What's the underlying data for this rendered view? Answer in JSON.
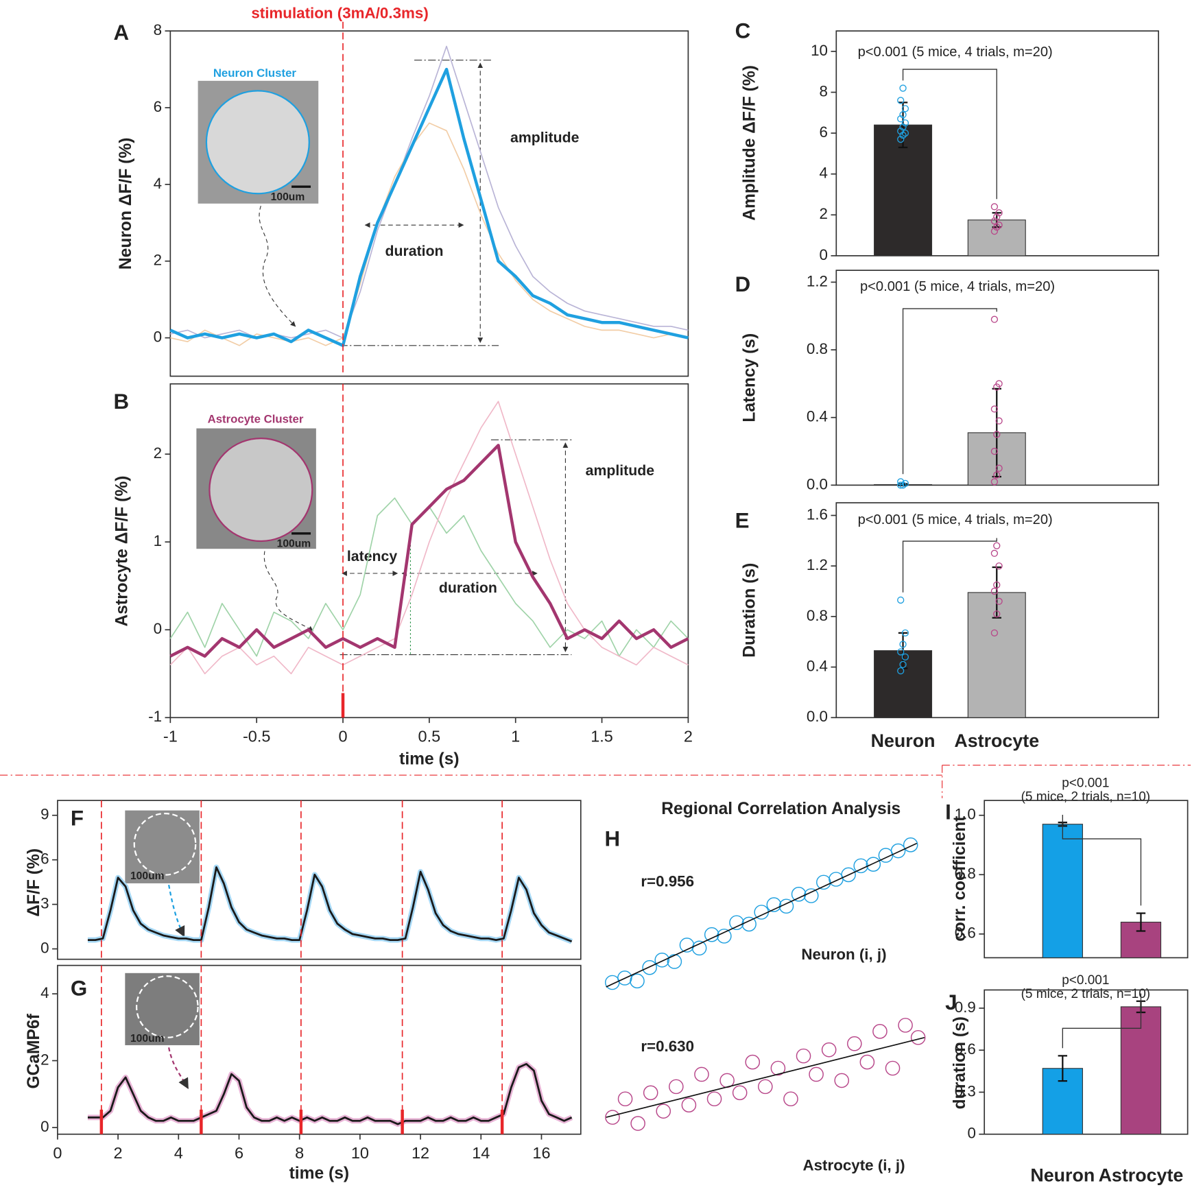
{
  "chart_data": [
    {
      "type": "line",
      "panel": "A",
      "stim_label": "stimulation (3mA/0.3ms)",
      "inset_title": "Neuron Cluster",
      "scale_bar": "100um",
      "annotations": [
        "amplitude",
        "duration"
      ],
      "y_label": "Neuron ΔF/F (%)",
      "xlim": [
        -1,
        2
      ],
      "ylim": [
        -1,
        8
      ],
      "yticks": [
        0,
        2,
        4,
        6,
        8
      ],
      "stim_times": [
        0
      ],
      "stim_color": "#e8262a",
      "x": [
        -1,
        -0.9,
        -0.8,
        -0.7,
        -0.6,
        -0.5,
        -0.4,
        -0.3,
        -0.2,
        -0.1,
        0,
        0.1,
        0.2,
        0.3,
        0.4,
        0.5,
        0.6,
        0.7,
        0.8,
        0.9,
        1,
        1.1,
        1.2,
        1.3,
        1.4,
        1.5,
        1.6,
        1.7,
        1.8,
        1.9,
        2
      ],
      "series": [
        {
          "color": "#b9b4d6",
          "linewidth": 1.5,
          "values": [
            0.1,
            0.2,
            0.0,
            0.1,
            0.2,
            0.0,
            0.1,
            0.0,
            0.1,
            0.2,
            0.0,
            1.2,
            2.8,
            4.0,
            5.2,
            6.3,
            7.6,
            6.2,
            4.8,
            3.4,
            2.4,
            1.6,
            1.2,
            0.9,
            0.7,
            0.6,
            0.5,
            0.4,
            0.3,
            0.3,
            0.2
          ]
        },
        {
          "color": "#f2cda6",
          "linewidth": 1.5,
          "values": [
            0.0,
            -0.1,
            0.2,
            0.0,
            -0.2,
            0.1,
            0.0,
            -0.1,
            0.0,
            -0.2,
            0.0,
            1.4,
            3.0,
            4.2,
            5.0,
            5.6,
            5.4,
            4.4,
            3.2,
            2.2,
            1.5,
            1.0,
            0.7,
            0.5,
            0.3,
            0.2,
            0.2,
            0.1,
            0.0,
            0.1,
            0.0
          ]
        },
        {
          "color": "#1fa0e0",
          "linewidth": 4,
          "values": [
            0.2,
            0.0,
            0.1,
            0.0,
            0.1,
            0.0,
            0.1,
            -0.1,
            0.2,
            0.0,
            -0.2,
            1.6,
            3.0,
            4.0,
            5.0,
            6.0,
            7.0,
            5.2,
            3.6,
            2.0,
            1.6,
            1.1,
            0.9,
            0.6,
            0.5,
            0.4,
            0.4,
            0.3,
            0.2,
            0.1,
            0.0
          ]
        }
      ]
    },
    {
      "type": "line",
      "panel": "B",
      "inset_title": "Astrocyte Cluster",
      "scale_bar": "100um",
      "annotations": [
        "amplitude",
        "latency",
        "duration"
      ],
      "y_label": "Astrocyte ΔF/F (%)",
      "x_label": "time (s)",
      "xlim": [
        -1,
        2
      ],
      "ylim": [
        -1,
        2.8
      ],
      "yticks": [
        -1,
        0,
        1,
        2
      ],
      "xticks": [
        -1,
        -0.5,
        0,
        0.5,
        1,
        1.5,
        2
      ],
      "stim_times": [
        0
      ],
      "stim_color": "#e8262a",
      "stim_bar": true,
      "x": [
        -1,
        -0.9,
        -0.8,
        -0.7,
        -0.6,
        -0.5,
        -0.4,
        -0.3,
        -0.2,
        -0.1,
        0,
        0.1,
        0.2,
        0.3,
        0.4,
        0.5,
        0.6,
        0.7,
        0.8,
        0.9,
        1,
        1.1,
        1.2,
        1.3,
        1.4,
        1.5,
        1.6,
        1.7,
        1.8,
        1.9,
        2
      ],
      "series": [
        {
          "color": "#9fd3a8",
          "linewidth": 1.5,
          "values": [
            -0.1,
            0.2,
            -0.2,
            0.3,
            0.0,
            -0.3,
            0.2,
            0.1,
            -0.1,
            0.3,
            0.0,
            0.4,
            1.3,
            1.5,
            1.2,
            1.4,
            1.1,
            1.3,
            0.9,
            0.6,
            0.3,
            0.1,
            -0.2,
            0.0,
            -0.1,
            0.1,
            -0.3,
            0.0,
            -0.2,
            0.1,
            -0.1
          ]
        },
        {
          "color": "#f0b8c8",
          "linewidth": 1.5,
          "values": [
            -0.4,
            -0.2,
            -0.5,
            -0.3,
            -0.2,
            -0.4,
            -0.3,
            -0.5,
            -0.2,
            -0.3,
            -0.4,
            -0.3,
            -0.2,
            -0.1,
            0.4,
            1.0,
            1.5,
            1.9,
            2.3,
            2.6,
            2.0,
            1.4,
            0.8,
            0.3,
            0.0,
            -0.2,
            -0.3,
            -0.4,
            -0.2,
            -0.3,
            -0.4
          ]
        },
        {
          "color": "#a3366f",
          "linewidth": 4,
          "values": [
            -0.3,
            -0.2,
            -0.3,
            -0.1,
            -0.2,
            0.0,
            -0.2,
            -0.1,
            0.0,
            -0.2,
            -0.1,
            -0.2,
            -0.1,
            -0.2,
            1.2,
            1.4,
            1.6,
            1.7,
            1.9,
            2.1,
            1.0,
            0.6,
            0.3,
            -0.1,
            0.0,
            -0.1,
            0.1,
            -0.1,
            0.0,
            -0.2,
            -0.1
          ]
        }
      ]
    },
    {
      "type": "bar",
      "panel": "C",
      "annotation": "p<0.001 (5 mice, 4 trials, m=20)",
      "y_label": "Amplitude ΔF/F (%)",
      "ylim": [
        0,
        11
      ],
      "yticks": [
        0,
        2,
        4,
        6,
        8,
        10
      ],
      "values": [
        6.4,
        1.75
      ],
      "errors": [
        1.1,
        0.35
      ],
      "colors": [
        "#2d2a2a",
        "#b3b3b3"
      ],
      "point_colors": [
        "#1fa0e0",
        "#b8478a"
      ],
      "points": [
        [
          5.7,
          5.9,
          6.0,
          6.1,
          6.3,
          6.5,
          6.7,
          6.9,
          7.2,
          7.6,
          8.2
        ],
        [
          1.2,
          1.4,
          1.5,
          1.7,
          1.9,
          2.1,
          2.4
        ]
      ]
    },
    {
      "type": "bar",
      "panel": "D",
      "annotation": "p<0.001 (5 mice, 4 trials, m=20)",
      "y_label": "Latency (s)",
      "ylim": [
        0,
        1.27
      ],
      "yticks": [
        {
          "value": 0,
          "label": "0.0"
        },
        0.4,
        0.8,
        1.2
      ],
      "values": [
        0.003,
        0.31
      ],
      "errors": [
        0.005,
        0.26
      ],
      "colors": [
        "#2d2a2a",
        "#b3b3b3"
      ],
      "point_colors": [
        "#1fa0e0",
        "#b8478a"
      ],
      "points": [
        [
          0,
          0,
          0.01,
          0.02
        ],
        [
          0.02,
          0.06,
          0.1,
          0.2,
          0.3,
          0.38,
          0.45,
          0.58,
          0.6,
          0.98
        ]
      ]
    },
    {
      "type": "bar",
      "panel": "E",
      "annotation": "p<0.001 (5 mice, 4 trials, m=20)",
      "y_label": "Duration (s)",
      "categories": [
        "Neuron",
        "Astrocyte"
      ],
      "ylim": [
        0,
        1.7
      ],
      "yticks": [
        {
          "value": 0,
          "label": "0.0"
        },
        0.4,
        0.8,
        1.2,
        1.6
      ],
      "values": [
        0.53,
        0.99
      ],
      "errors": [
        0.14,
        0.2
      ],
      "colors": [
        "#2d2a2a",
        "#b3b3b3"
      ],
      "point_colors": [
        "#1fa0e0",
        "#b8478a"
      ],
      "points": [
        [
          0.37,
          0.42,
          0.48,
          0.52,
          0.58,
          0.67,
          0.93
        ],
        [
          0.67,
          0.82,
          0.92,
          1.0,
          1.05,
          1.2,
          1.3,
          1.36
        ]
      ]
    },
    {
      "type": "line",
      "panel": "F",
      "scale_bar": "100um",
      "y_label": "ΔF/F (%)",
      "xlim": [
        0,
        17.3
      ],
      "ylim": [
        -0.7,
        10
      ],
      "yticks": [
        0,
        3,
        6,
        9
      ],
      "stim_times": [
        1.45,
        4.75,
        8.05,
        11.4,
        14.7
      ],
      "stim_color": "#e8262a",
      "band_color": "#a6d8f5",
      "x": [
        1,
        1.25,
        1.5,
        1.75,
        2,
        2.25,
        2.5,
        2.75,
        3,
        3.25,
        3.5,
        3.75,
        4,
        4.25,
        4.5,
        4.75,
        5,
        5.25,
        5.5,
        5.75,
        6,
        6.25,
        6.5,
        6.75,
        7,
        7.25,
        7.5,
        7.75,
        8,
        8.25,
        8.5,
        8.75,
        9,
        9.25,
        9.5,
        9.75,
        10,
        10.25,
        10.5,
        10.75,
        11,
        11.25,
        11.5,
        11.75,
        12,
        12.25,
        12.5,
        12.75,
        13,
        13.25,
        13.5,
        13.75,
        14,
        14.25,
        14.5,
        14.75,
        15,
        15.25,
        15.5,
        15.75,
        16,
        16.25,
        16.5,
        16.75,
        17
      ],
      "series": [
        {
          "color": "#1a1a1a",
          "linewidth": 2.5,
          "values": [
            0.6,
            0.6,
            0.7,
            2.6,
            4.8,
            4.2,
            2.6,
            1.7,
            1.3,
            1.1,
            0.9,
            0.8,
            0.7,
            0.7,
            0.6,
            0.6,
            2.8,
            5.5,
            4.4,
            2.8,
            1.8,
            1.3,
            1.1,
            0.9,
            0.8,
            0.7,
            0.7,
            0.6,
            0.6,
            2.6,
            5.0,
            4.2,
            2.6,
            1.7,
            1.3,
            1.0,
            0.9,
            0.8,
            0.7,
            0.7,
            0.6,
            0.6,
            0.7,
            2.8,
            5.2,
            4.0,
            2.4,
            1.6,
            1.2,
            1.0,
            0.9,
            0.8,
            0.7,
            0.7,
            0.6,
            0.7,
            2.6,
            4.8,
            4.0,
            2.4,
            1.6,
            1.1,
            0.9,
            0.7,
            0.5
          ]
        }
      ]
    },
    {
      "type": "line",
      "panel": "G",
      "scale_bar": "100um",
      "y_label": "GCaMP6f",
      "x_label": "time (s)",
      "xlim": [
        0,
        17.3
      ],
      "ylim": [
        -0.2,
        4.85
      ],
      "yticks": [
        0,
        2,
        4
      ],
      "xticks": [
        0,
        2,
        4,
        6,
        8,
        10,
        12,
        14,
        16
      ],
      "stim_times": [
        1.45,
        4.75,
        8.05,
        11.4,
        14.7
      ],
      "stim_color": "#e8262a",
      "stim_bar": true,
      "band_color": "#e8b4d6",
      "x": [
        1,
        1.25,
        1.5,
        1.75,
        2,
        2.25,
        2.5,
        2.75,
        3,
        3.25,
        3.5,
        3.75,
        4,
        4.25,
        4.5,
        4.75,
        5,
        5.25,
        5.5,
        5.75,
        6,
        6.25,
        6.5,
        6.75,
        7,
        7.25,
        7.5,
        7.75,
        8,
        8.25,
        8.5,
        8.75,
        9,
        9.25,
        9.5,
        9.75,
        10,
        10.25,
        10.5,
        10.75,
        11,
        11.25,
        11.5,
        11.75,
        12,
        12.25,
        12.5,
        12.75,
        13,
        13.25,
        13.5,
        13.75,
        14,
        14.25,
        14.5,
        14.75,
        15,
        15.25,
        15.5,
        15.75,
        16,
        16.25,
        16.5,
        16.75,
        17
      ],
      "series": [
        {
          "color": "#1a1a1a",
          "linewidth": 2.5,
          "values": [
            0.3,
            0.3,
            0.3,
            0.5,
            1.2,
            1.5,
            1.0,
            0.5,
            0.3,
            0.2,
            0.2,
            0.3,
            0.2,
            0.2,
            0.2,
            0.3,
            0.4,
            0.5,
            1.0,
            1.6,
            1.4,
            0.6,
            0.3,
            0.2,
            0.2,
            0.3,
            0.2,
            0.3,
            0.2,
            0.3,
            0.2,
            0.3,
            0.2,
            0.2,
            0.3,
            0.2,
            0.2,
            0.3,
            0.2,
            0.2,
            0.2,
            0.1,
            0.2,
            0.2,
            0.2,
            0.3,
            0.2,
            0.2,
            0.3,
            0.2,
            0.2,
            0.3,
            0.2,
            0.2,
            0.3,
            0.4,
            1.2,
            1.8,
            1.9,
            1.7,
            0.8,
            0.4,
            0.3,
            0.2,
            0.3
          ]
        }
      ]
    },
    {
      "type": "scatter",
      "panel": "H",
      "title": "Regional Correlation Analysis",
      "xlim": [
        0,
        1
      ],
      "ylim": [
        0,
        1
      ],
      "series": [
        {
          "name": "Neuron (i, j)",
          "r_label": "r=0.956",
          "color": "#1fa0e0",
          "x": [
            0.02,
            0.06,
            0.1,
            0.14,
            0.18,
            0.22,
            0.26,
            0.3,
            0.34,
            0.38,
            0.42,
            0.46,
            0.5,
            0.54,
            0.58,
            0.62,
            0.66,
            0.7,
            0.74,
            0.78,
            0.82,
            0.86,
            0.9,
            0.94,
            0.98
          ],
          "values": [
            0.05,
            0.08,
            0.06,
            0.15,
            0.2,
            0.19,
            0.3,
            0.28,
            0.37,
            0.36,
            0.45,
            0.44,
            0.52,
            0.57,
            0.56,
            0.64,
            0.63,
            0.72,
            0.74,
            0.77,
            0.83,
            0.84,
            0.9,
            0.93,
            0.97
          ],
          "fit": {
            "x": [
              0,
              1
            ],
            "y": [
              0.02,
              0.98
            ]
          }
        },
        {
          "name": "Astrocyte (i, j)",
          "r_label": "r=0.630",
          "color": "#b8478a",
          "x": [
            0.02,
            0.06,
            0.1,
            0.14,
            0.18,
            0.22,
            0.26,
            0.3,
            0.34,
            0.38,
            0.42,
            0.46,
            0.5,
            0.54,
            0.58,
            0.62,
            0.66,
            0.7,
            0.74,
            0.78,
            0.82,
            0.86,
            0.9,
            0.94,
            0.98
          ],
          "values": [
            0.15,
            0.3,
            0.1,
            0.35,
            0.2,
            0.4,
            0.25,
            0.5,
            0.3,
            0.45,
            0.35,
            0.6,
            0.4,
            0.55,
            0.3,
            0.65,
            0.5,
            0.7,
            0.45,
            0.75,
            0.6,
            0.85,
            0.55,
            0.9,
            0.8
          ],
          "fit": {
            "x": [
              0,
              1
            ],
            "y": [
              0.15,
              0.8
            ]
          }
        }
      ]
    },
    {
      "type": "bar",
      "panel": "I",
      "annotation": [
        "p<0.001",
        "(5 mice, 2 trials, n=10)"
      ],
      "y_label": "corr. coefficient",
      "ylim": [
        0.52,
        1.05
      ],
      "yticks": [
        0.6,
        0.8,
        {
          "value": 1,
          "label": "1.0"
        }
      ],
      "values": [
        0.97,
        0.64
      ],
      "errors": [
        0.006,
        0.03
      ],
      "colors": [
        "#14a0e6",
        "#a8437f"
      ]
    },
    {
      "type": "bar",
      "panel": "J",
      "annotation": [
        "p<0.001",
        "(5 mice, 2 trials, n=10)"
      ],
      "y_label": "duration (s)",
      "categories": [
        "Neuron",
        "Astrocyte"
      ],
      "ylim": [
        0,
        1.03
      ],
      "yticks": [
        0,
        0.3,
        0.6,
        0.9
      ],
      "values": [
        0.47,
        0.91
      ],
      "errors": [
        0.09,
        0.04
      ],
      "colors": [
        "#14a0e6",
        "#a8437f"
      ]
    }
  ]
}
